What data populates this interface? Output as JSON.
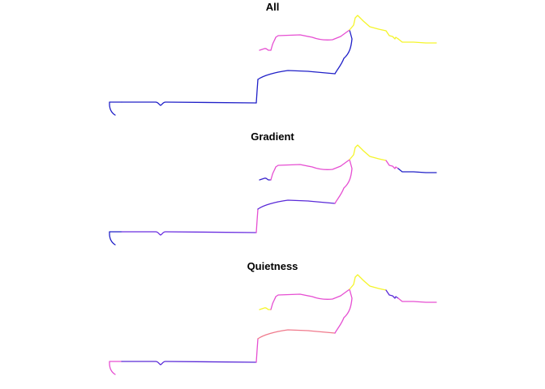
{
  "panels": [
    {
      "title": "All",
      "segments": [
        {
          "shape": "tail",
          "color": "#2020c8"
        },
        {
          "shape": "lower",
          "color": "#2020c8"
        },
        {
          "shape": "riser",
          "color": "#2020c8"
        },
        {
          "shape": "middle",
          "color": "#2020c8"
        },
        {
          "shape": "climb",
          "color": "#2020c8"
        },
        {
          "shape": "upper-left",
          "color": "#e64fd2"
        },
        {
          "shape": "upper",
          "color": "#e64fd2"
        },
        {
          "shape": "ridge",
          "color": "#f5f52a"
        },
        {
          "shape": "descent",
          "color": "#f5f52a"
        },
        {
          "shape": "end",
          "color": "#f5f52a"
        }
      ]
    },
    {
      "title": "Gradient",
      "segments": [
        {
          "shape": "tail",
          "color": "#2020c8"
        },
        {
          "shape": "lower",
          "color": "#6a2ee0"
        },
        {
          "shape": "riser",
          "color": "#e64fd2"
        },
        {
          "shape": "middle",
          "color": "#5a2ad8"
        },
        {
          "shape": "climb",
          "color": "#e64fd2"
        },
        {
          "shape": "upper-left",
          "color": "#3a24cc"
        },
        {
          "shape": "upper",
          "color": "#e64fd2"
        },
        {
          "shape": "ridge",
          "color": "#f5f52a"
        },
        {
          "shape": "descent",
          "color": "#e64fd2"
        },
        {
          "shape": "end",
          "color": "#2020c8"
        }
      ]
    },
    {
      "title": "Quietness",
      "segments": [
        {
          "shape": "tail",
          "color": "#e64fd2"
        },
        {
          "shape": "lower",
          "color": "#5a2ad8"
        },
        {
          "shape": "riser",
          "color": "#e64fd2"
        },
        {
          "shape": "middle",
          "color": "#f07a8c"
        },
        {
          "shape": "climb",
          "color": "#e64fd2"
        },
        {
          "shape": "upper-left",
          "color": "#f5f52a"
        },
        {
          "shape": "upper",
          "color": "#e64fd2"
        },
        {
          "shape": "ridge",
          "color": "#f5f52a"
        },
        {
          "shape": "descent",
          "color": "#5a2ad8"
        },
        {
          "shape": "end",
          "color": "#e64fd2"
        }
      ]
    }
  ]
}
